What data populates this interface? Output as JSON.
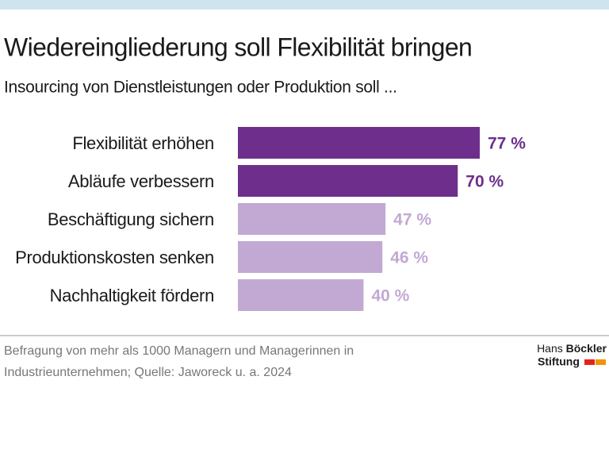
{
  "chart_data": {
    "type": "hbar",
    "title": "Wiedereingliederung soll Flexibilität bringen",
    "subtitle": "Insourcing von Dienstleistungen oder Produktion soll ...",
    "categories": [
      "Flexibilität erhöhen",
      "Abläufe verbessern",
      "Beschäftigung sichern",
      "Produktionskosten senken",
      "Nachhaltigkeit fördern"
    ],
    "values": [
      77,
      70,
      47,
      46,
      40
    ],
    "value_labels": [
      "77 %",
      "70 %",
      "47 %",
      "46 %",
      "40 %"
    ],
    "colors": [
      "#6d2f8b",
      "#6d2f8b",
      "#c2a9d3",
      "#c2a9d3",
      "#c2a9d3"
    ],
    "source": [
      "Befragung von mehr als 1000 Managern und Managerinnen in",
      "Industrieunternehmen; Quelle: Jaworeck u. a. 2024"
    ],
    "logo": {
      "first": "Hans",
      "second": "Böckler",
      "third": "Stiftung"
    }
  }
}
